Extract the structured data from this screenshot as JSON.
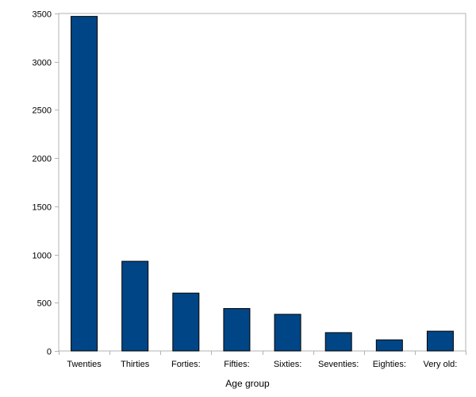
{
  "chart_data": {
    "type": "bar",
    "title": "",
    "xlabel": "Age group",
    "ylabel": "",
    "categories": [
      "Twenties",
      "Thirties",
      "Forties:",
      "Fifties:",
      "Sixties:",
      "Seventies:",
      "Eighties:",
      "Very old:"
    ],
    "values": [
      3470,
      930,
      600,
      440,
      380,
      190,
      115,
      205
    ],
    "ylim": [
      0,
      3500
    ],
    "yticks": [
      0,
      500,
      1000,
      1500,
      2000,
      2500,
      3000,
      3500
    ],
    "grid": false,
    "legend": "none",
    "colors": {
      "bar_fill": "#004586",
      "bar_stroke": "#000000",
      "axis": "#b3b3b3"
    }
  }
}
